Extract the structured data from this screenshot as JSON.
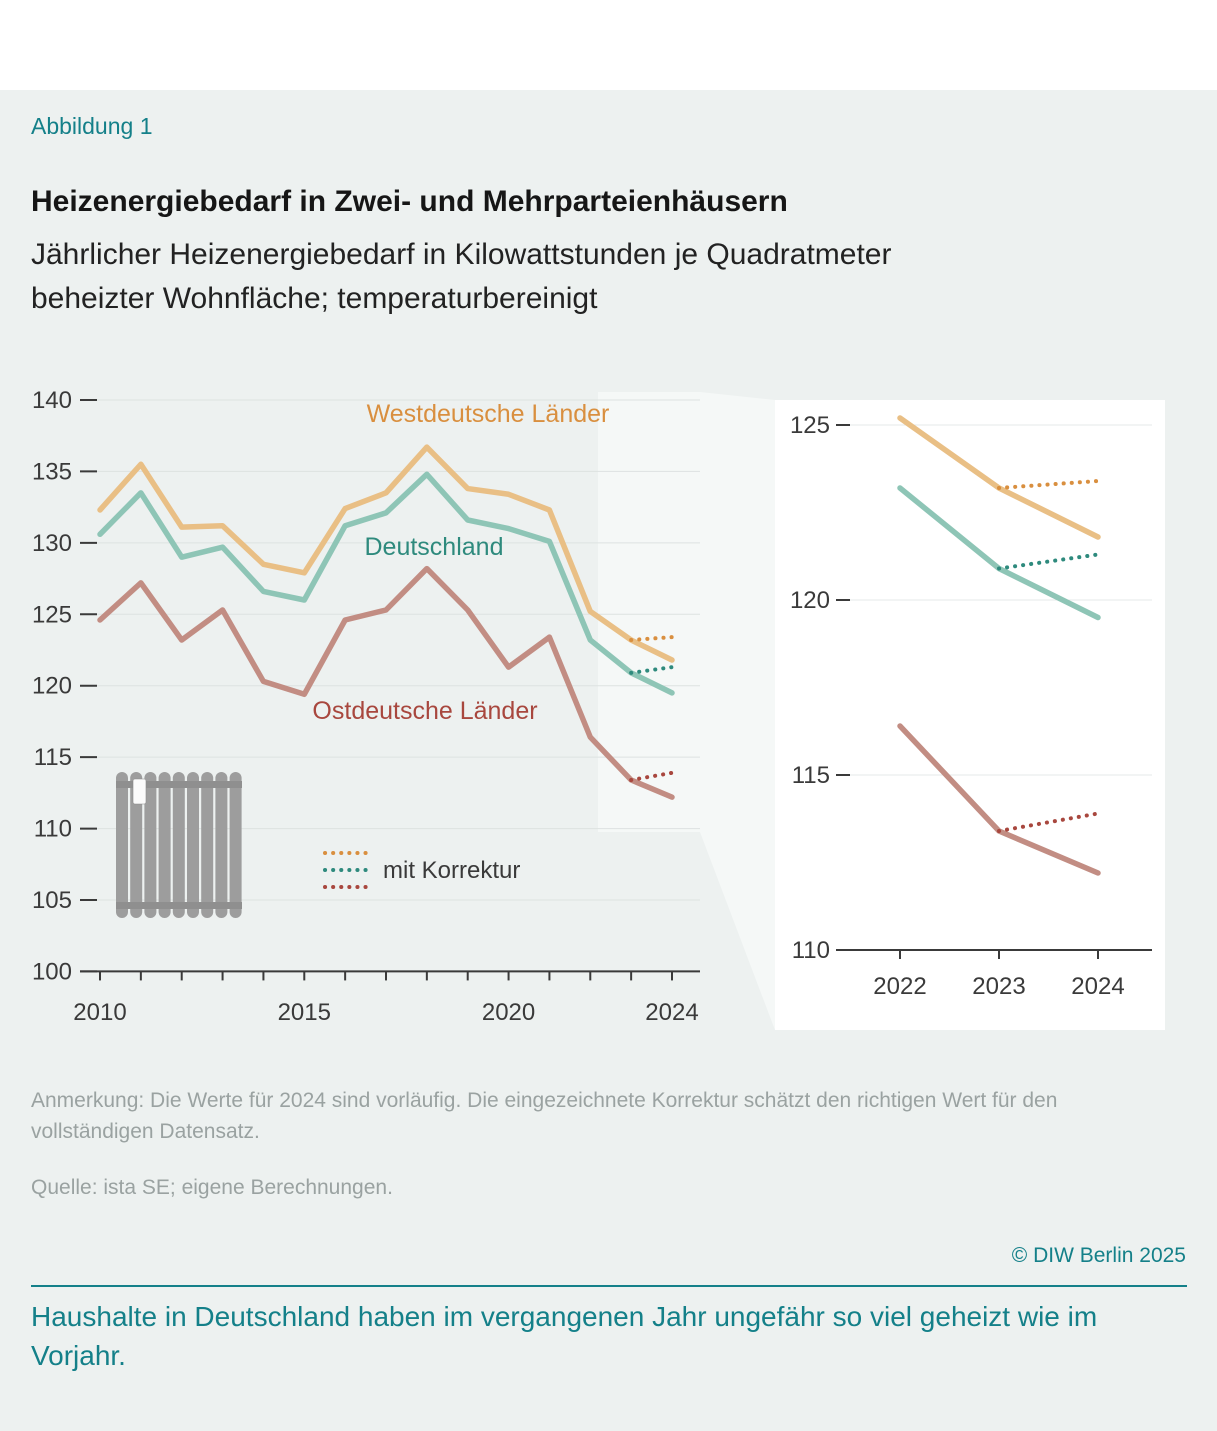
{
  "page": {
    "figure_label": "Abbildung 1",
    "title": "Heizenergiebedarf in Zwei- und Mehrparteienhäusern",
    "subtitle": "Jährlicher Heizenergiebedarf in Kilowattstunden je Quadratmeter beheizter Wohnfläche; temperaturbereinigt",
    "note": "Anmerkung: Die Werte für 2024 sind vorläufig. Die eingezeichnete Korrektur schätzt den richtigen Wert für den vollständigen Datensatz.",
    "source": "Quelle: ista SE; eigene Berechnungen.",
    "copyright": "© DIW Berlin 2025",
    "takeaway": "Haushalte in Deutschland haben im vergangenen Jahr ungefähr so viel geheizt wie im Vorjahr."
  },
  "colors": {
    "accent_teal": "#148089",
    "background": "#edf1f0",
    "axis": "#3a3a3a",
    "grid": "#dde2e1",
    "inset_grid": "#e6e9e8",
    "highlight": "#f5f8f7",
    "note_gray": "#9aa2a1",
    "legend_text": "#3a3a3a"
  },
  "chart_data": [
    {
      "id": "main",
      "type": "line",
      "title": "",
      "xlabel": "",
      "ylabel": "",
      "x": [
        2010,
        2011,
        2012,
        2013,
        2014,
        2015,
        2016,
        2017,
        2018,
        2019,
        2020,
        2021,
        2022,
        2023,
        2024
      ],
      "xticks": [
        2010,
        2015,
        2020,
        2024
      ],
      "ylim": [
        100,
        140
      ],
      "yticks": [
        100,
        105,
        110,
        115,
        120,
        125,
        130,
        135,
        140
      ],
      "grid": "horizontal",
      "legend_label": "mit Korrektur",
      "series": [
        {
          "key": "west",
          "name": "Westdeutsche Länder",
          "color": "#e9bf85",
          "label_color": "#d98f3f",
          "values": [
            132.3,
            135.5,
            131.1,
            131.2,
            128.5,
            127.9,
            132.4,
            133.5,
            136.7,
            133.8,
            133.4,
            132.3,
            125.2,
            123.2,
            121.8
          ],
          "correction_x": [
            2023,
            2024
          ],
          "correction": [
            123.2,
            123.4
          ]
        },
        {
          "key": "deutschland",
          "name": "Deutschland",
          "color": "#8ec5b6",
          "label_color": "#2e8a7d",
          "values": [
            130.6,
            133.5,
            129.0,
            129.7,
            126.6,
            126.0,
            131.2,
            132.1,
            134.8,
            131.6,
            131.0,
            130.1,
            123.2,
            120.9,
            119.5
          ],
          "correction_x": [
            2023,
            2024
          ],
          "correction": [
            120.9,
            121.3
          ]
        },
        {
          "key": "ost",
          "name": "Ostdeutsche Länder",
          "color": "#c28d83",
          "label_color": "#a8473e",
          "values": [
            124.6,
            127.2,
            123.2,
            125.3,
            120.3,
            119.4,
            124.6,
            125.3,
            128.2,
            125.3,
            121.3,
            123.4,
            116.4,
            113.4,
            112.2
          ],
          "correction_x": [
            2023,
            2024
          ],
          "correction": [
            113.4,
            113.9
          ]
        }
      ]
    },
    {
      "id": "inset",
      "type": "line",
      "title": "",
      "xlabel": "",
      "ylabel": "",
      "x": [
        2022,
        2023,
        2024
      ],
      "xticks": [
        2022,
        2023,
        2024
      ],
      "ylim": [
        110,
        126
      ],
      "yticks": [
        110,
        115,
        120,
        125
      ],
      "grid": "horizontal",
      "series": [
        {
          "key": "west",
          "name": "Westdeutsche Länder",
          "color": "#e9bf85",
          "label_color": "#d98f3f",
          "values": [
            125.2,
            123.2,
            121.8
          ],
          "correction_x": [
            2023,
            2024
          ],
          "correction": [
            123.2,
            123.4
          ]
        },
        {
          "key": "deutschland",
          "name": "Deutschland",
          "color": "#8ec5b6",
          "label_color": "#2e8a7d",
          "values": [
            123.2,
            120.9,
            119.5
          ],
          "correction_x": [
            2023,
            2024
          ],
          "correction": [
            120.9,
            121.3
          ]
        },
        {
          "key": "ost",
          "name": "Ostdeutsche Länder",
          "color": "#c28d83",
          "label_color": "#a8473e",
          "values": [
            116.4,
            113.4,
            112.2
          ],
          "correction_x": [
            2023,
            2024
          ],
          "correction": [
            113.4,
            113.9
          ]
        }
      ]
    }
  ]
}
